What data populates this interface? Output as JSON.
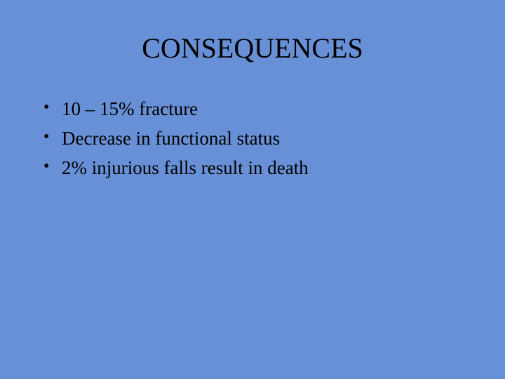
{
  "slide": {
    "background_color": "#6890d6",
    "text_color": "#000000",
    "font_family": "Times New Roman",
    "title": {
      "text": "CONSEQUENCES",
      "fontsize": 40,
      "alignment": "center"
    },
    "bullets": [
      {
        "text": "10 – 15%  fracture"
      },
      {
        "text": "Decrease in functional status"
      },
      {
        "text": "2% injurious falls result in death"
      }
    ],
    "bullet_fontsize": 27
  }
}
